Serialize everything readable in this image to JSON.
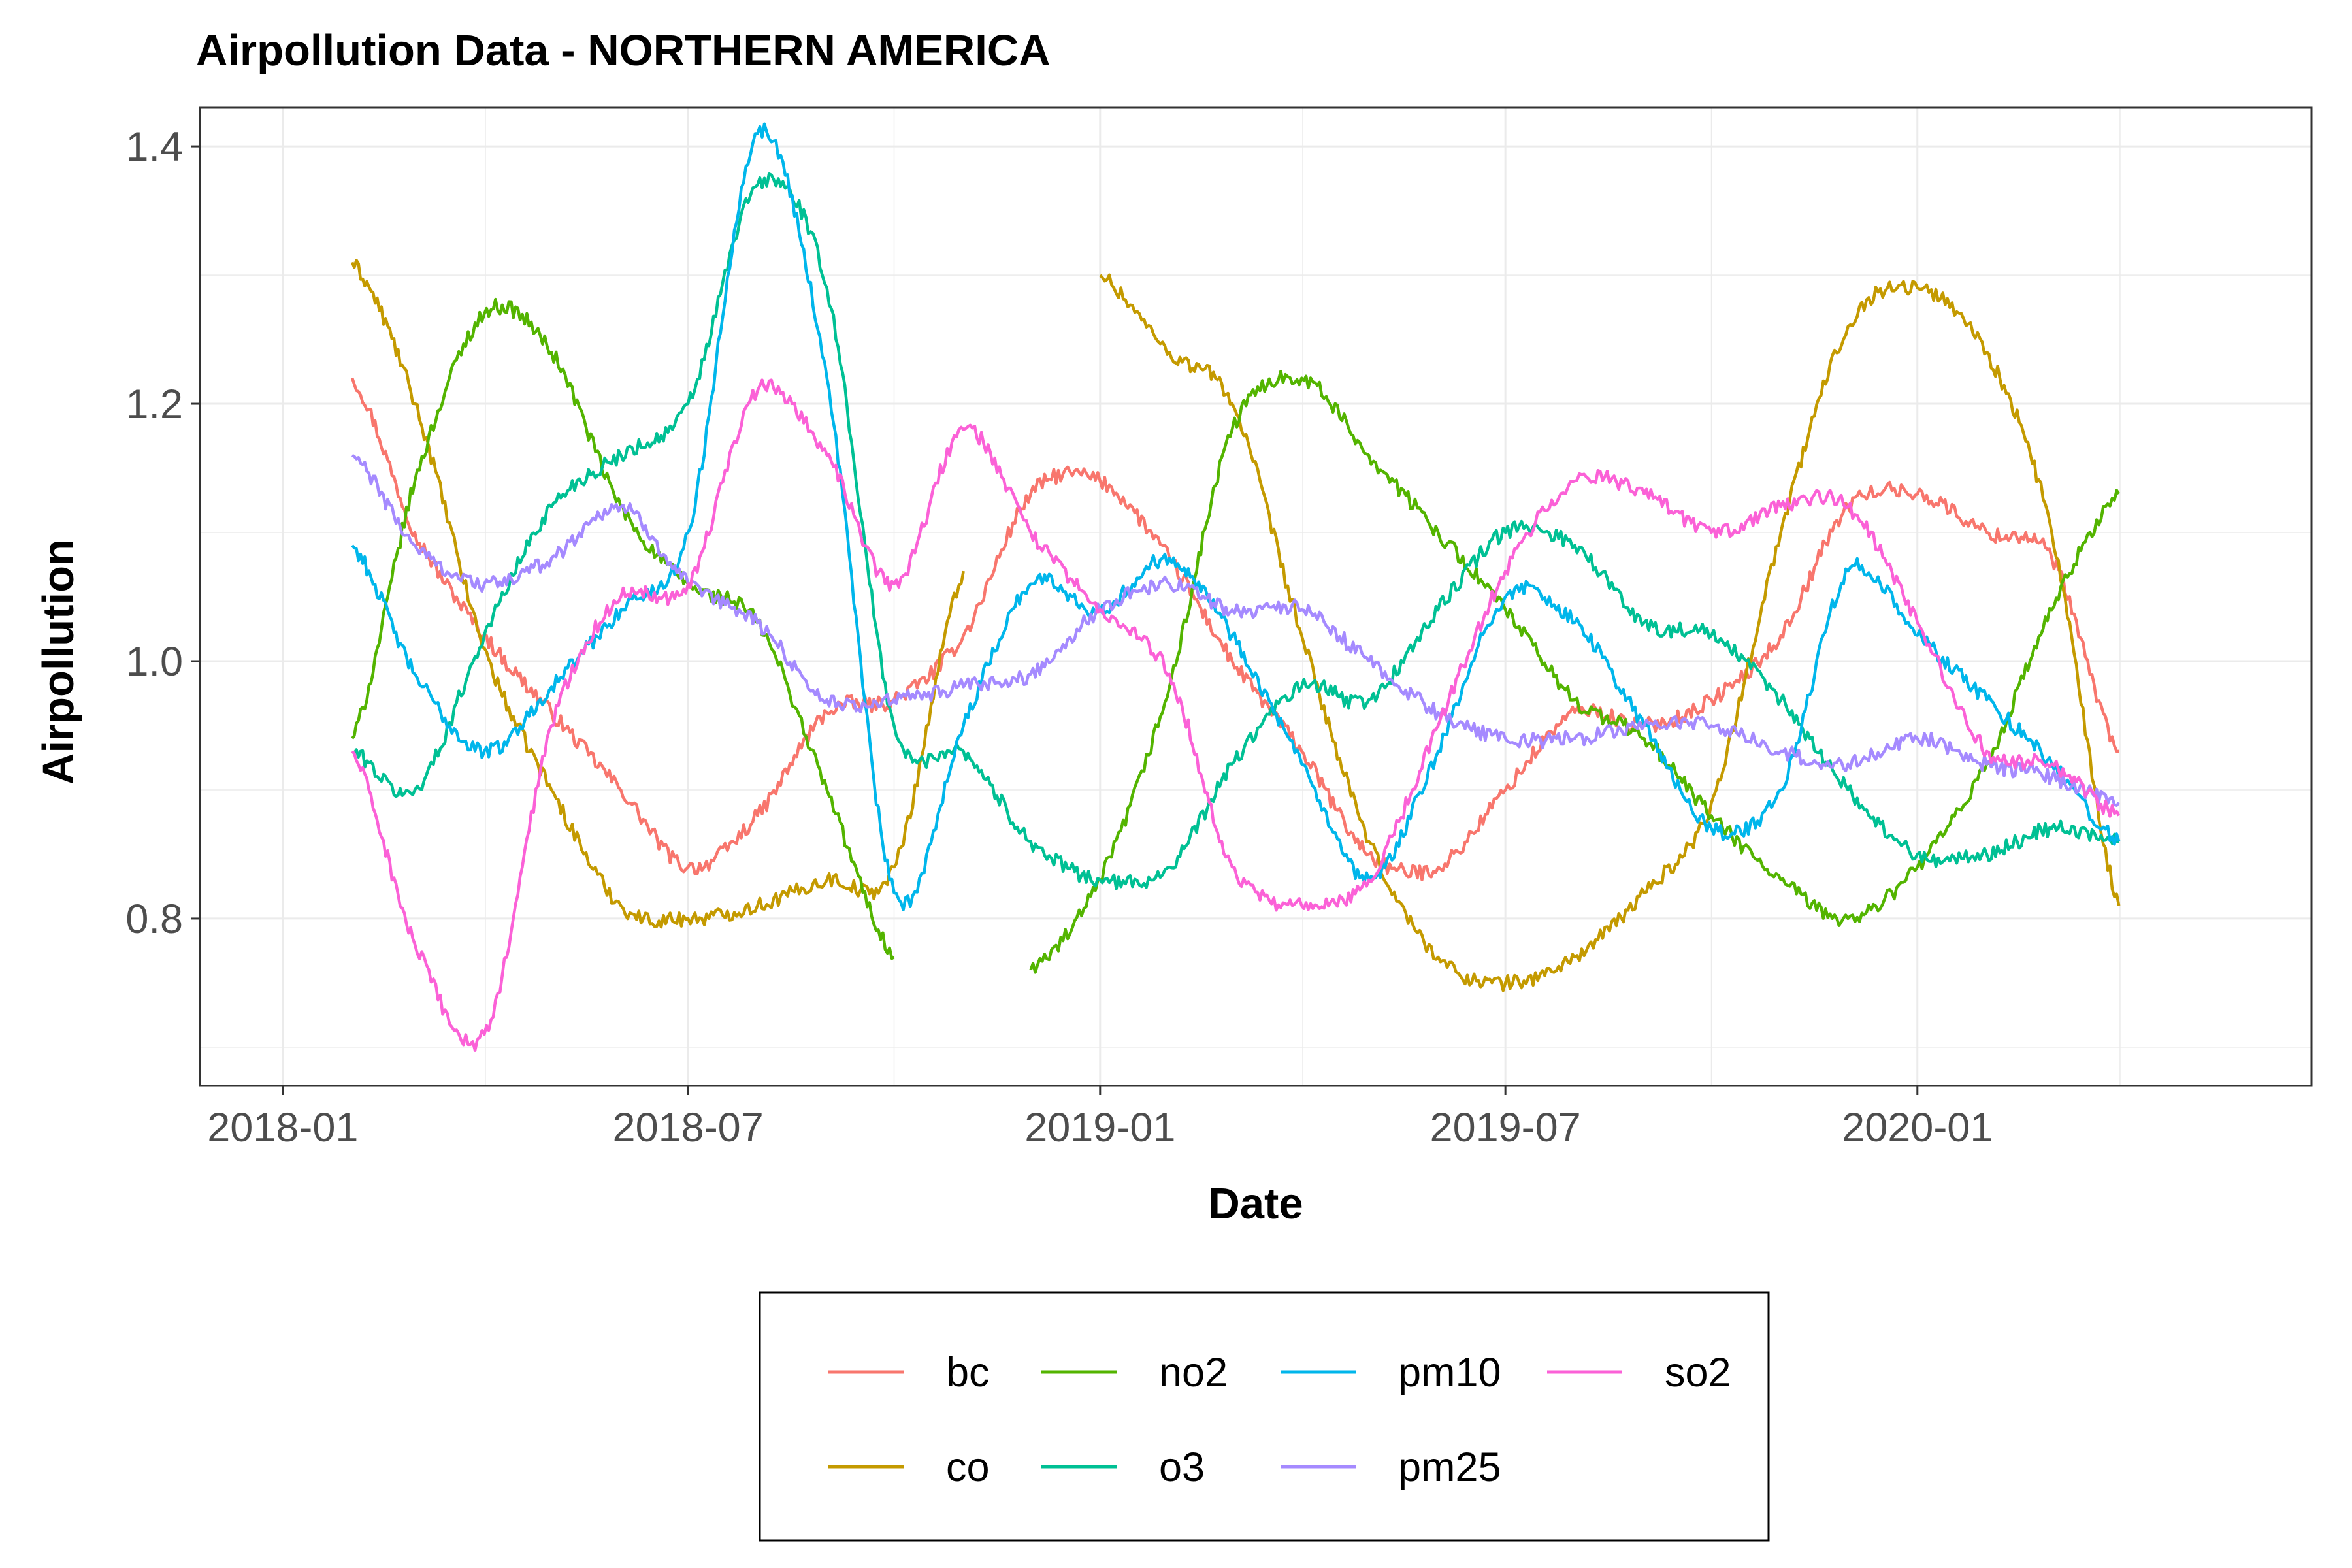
{
  "chart_data": {
    "type": "line",
    "title": "Airpollution Data - NORTHERN AMERICA",
    "xlabel": "Date",
    "ylabel": "Airpollution",
    "x_ticks": [
      "2018-01",
      "2018-07",
      "2019-01",
      "2019-07",
      "2020-01"
    ],
    "y_ticks": [
      "0.8",
      "1.0",
      "1.2",
      "1.4"
    ],
    "xlim": [
      "2017-11-25",
      "2020-06-25"
    ],
    "ylim": [
      0.67,
      1.43
    ],
    "grid": true,
    "legend_position": "bottom",
    "colors": {
      "bc": "#F8766D",
      "co": "#C49A00",
      "no2": "#53B400",
      "o3": "#00C094",
      "pm10": "#00B6EB",
      "pm25": "#A58AFF",
      "so2": "#FB61D7"
    },
    "x": [
      "2018-02-01",
      "2018-03-01",
      "2018-04-01",
      "2018-05-01",
      "2018-06-01",
      "2018-07-01",
      "2018-08-01",
      "2018-09-01",
      "2018-10-01",
      "2018-11-01",
      "2018-12-01",
      "2019-01-01",
      "2019-02-01",
      "2019-03-01",
      "2019-04-01",
      "2019-05-01",
      "2019-06-01",
      "2019-07-01",
      "2019-08-01",
      "2019-09-01",
      "2019-10-01",
      "2019-11-01",
      "2019-12-01",
      "2020-01-01",
      "2020-02-01",
      "2020-03-01",
      "2020-03-31"
    ],
    "series": [
      {
        "name": "bc",
        "values": [
          1.22,
          1.1,
          1.02,
          0.96,
          0.9,
          0.84,
          0.88,
          0.96,
          0.97,
          1.02,
          1.13,
          1.14,
          1.08,
          1.0,
          0.93,
          0.85,
          0.84,
          0.9,
          0.96,
          0.95,
          0.97,
          1.02,
          1.12,
          1.13,
          1.1,
          1.08,
          0.93
        ]
      },
      {
        "name": "co",
        "values": [
          1.31,
          1.2,
          1.01,
          0.9,
          0.81,
          0.8,
          0.81,
          0.83,
          0.84,
          1.07,
          null,
          1.3,
          1.24,
          1.2,
          1.02,
          0.86,
          0.77,
          0.75,
          0.77,
          0.82,
          0.89,
          1.1,
          1.26,
          1.29,
          1.24,
          1.1,
          0.81
        ]
      },
      {
        "name": "no2",
        "values": [
          0.94,
          1.14,
          1.27,
          1.24,
          1.12,
          1.06,
          1.03,
          0.9,
          0.77,
          null,
          0.76,
          0.83,
          0.98,
          1.18,
          1.22,
          1.16,
          1.1,
          1.04,
          0.97,
          0.94,
          0.88,
          0.83,
          0.8,
          0.84,
          0.92,
          1.04,
          1.13
        ]
      },
      {
        "name": "o3",
        "values": [
          0.93,
          0.9,
          1.02,
          1.12,
          1.16,
          1.2,
          1.37,
          1.29,
          0.95,
          0.93,
          0.86,
          0.83,
          0.84,
          0.92,
          0.98,
          0.97,
          1.04,
          1.1,
          1.09,
          1.03,
          1.02,
          0.97,
          0.9,
          0.85,
          0.85,
          0.87,
          0.86
        ]
      },
      {
        "name": "pm10",
        "values": [
          1.09,
          0.99,
          0.93,
          0.98,
          1.04,
          1.1,
          1.41,
          1.22,
          0.82,
          0.95,
          1.06,
          1.04,
          1.08,
          1.02,
          0.92,
          0.83,
          0.93,
          1.05,
          1.03,
          0.95,
          0.87,
          0.9,
          1.07,
          1.02,
          0.97,
          0.92,
          0.86
        ]
      },
      {
        "name": "pm25",
        "values": [
          1.16,
          1.09,
          1.06,
          1.08,
          1.12,
          1.06,
          1.03,
          0.97,
          0.97,
          0.98,
          0.99,
          1.04,
          1.06,
          1.04,
          1.04,
          1.0,
          0.96,
          0.94,
          0.94,
          0.95,
          0.95,
          0.93,
          0.92,
          0.94,
          0.92,
          0.91,
          0.89
        ]
      },
      {
        "name": "so2",
        "values": [
          0.93,
          0.78,
          0.71,
          0.95,
          1.05,
          1.06,
          1.21,
          1.16,
          1.06,
          1.18,
          1.1,
          1.04,
          0.99,
          0.84,
          0.81,
          0.83,
          0.95,
          1.07,
          1.14,
          1.13,
          1.1,
          1.12,
          1.12,
          1.03,
          0.93,
          0.92,
          0.88
        ]
      }
    ]
  }
}
